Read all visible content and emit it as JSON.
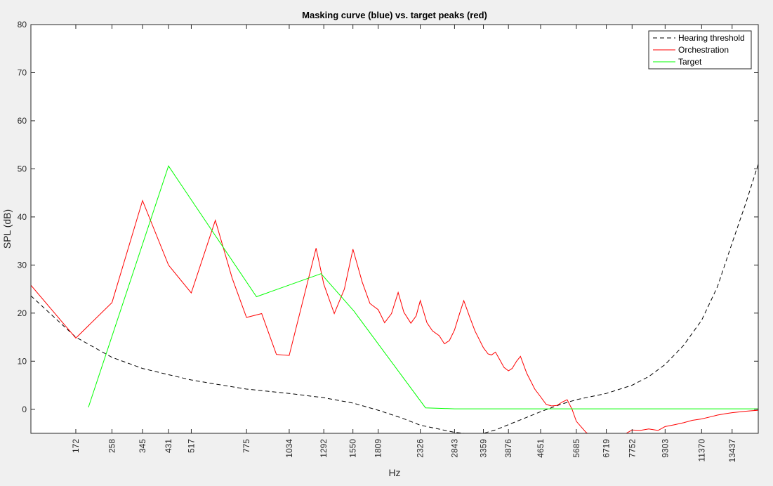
{
  "chart_data": {
    "type": "line",
    "title": "Masking curve (blue) vs. target peaks (red)",
    "xlabel": "Hz",
    "ylabel": "SPL (dB)",
    "ylim": [
      -5,
      80
    ],
    "yticks": [
      0,
      10,
      20,
      30,
      40,
      50,
      60,
      70,
      80
    ],
    "x_scale": "erb",
    "xlim": [
      86,
      15500
    ],
    "xticks": [
      172,
      258,
      345,
      431,
      517,
      775,
      1034,
      1292,
      1550,
      1809,
      2326,
      2843,
      3359,
      3876,
      4651,
      5685,
      6719,
      7752,
      9303,
      11370,
      13437
    ],
    "grid": false,
    "legend_position": "top-right",
    "series": [
      {
        "name": "Hearing threshold",
        "color": "#000000",
        "style": "dashed",
        "points": [
          [
            86,
            23.6
          ],
          [
            172,
            15.0
          ],
          [
            258,
            10.8
          ],
          [
            345,
            8.5
          ],
          [
            431,
            7.2
          ],
          [
            517,
            6.1
          ],
          [
            600,
            5.4
          ],
          [
            775,
            4.2
          ],
          [
            1034,
            3.3
          ],
          [
            1292,
            2.4
          ],
          [
            1550,
            1.3
          ],
          [
            1809,
            -0.2
          ],
          [
            2100,
            -1.9
          ],
          [
            2326,
            -3.3
          ],
          [
            2843,
            -4.8
          ],
          [
            3100,
            -5.1
          ],
          [
            3359,
            -5.0
          ],
          [
            3600,
            -4.3
          ],
          [
            3876,
            -3.2
          ],
          [
            4651,
            -0.5
          ],
          [
            5200,
            1.0
          ],
          [
            5685,
            2.0
          ],
          [
            6719,
            3.3
          ],
          [
            7752,
            5.0
          ],
          [
            8500,
            6.8
          ],
          [
            9303,
            9.3
          ],
          [
            10300,
            13.3
          ],
          [
            11370,
            18.5
          ],
          [
            12400,
            25.5
          ],
          [
            13437,
            34.6
          ],
          [
            14500,
            43.0
          ],
          [
            15500,
            51.0
          ]
        ]
      },
      {
        "name": "Orchestration",
        "color": "#ff0000",
        "style": "solid",
        "points": [
          [
            86,
            25.8
          ],
          [
            172,
            14.8
          ],
          [
            258,
            22.2
          ],
          [
            345,
            43.4
          ],
          [
            431,
            30.0
          ],
          [
            517,
            24.2
          ],
          [
            620,
            39.3
          ],
          [
            700,
            27.3
          ],
          [
            775,
            19.1
          ],
          [
            860,
            19.9
          ],
          [
            950,
            11.4
          ],
          [
            1034,
            11.2
          ],
          [
            1230,
            33.5
          ],
          [
            1292,
            26.0
          ],
          [
            1380,
            19.9
          ],
          [
            1470,
            25.0
          ],
          [
            1550,
            33.3
          ],
          [
            1640,
            26.5
          ],
          [
            1720,
            22.0
          ],
          [
            1809,
            20.7
          ],
          [
            1880,
            18.0
          ],
          [
            1960,
            19.9
          ],
          [
            2040,
            24.3
          ],
          [
            2110,
            20.2
          ],
          [
            2200,
            17.9
          ],
          [
            2270,
            19.4
          ],
          [
            2326,
            22.6
          ],
          [
            2420,
            18.0
          ],
          [
            2500,
            16.3
          ],
          [
            2600,
            15.3
          ],
          [
            2680,
            13.6
          ],
          [
            2760,
            14.3
          ],
          [
            2843,
            16.5
          ],
          [
            2930,
            20.0
          ],
          [
            3000,
            22.6
          ],
          [
            3100,
            19.3
          ],
          [
            3200,
            16.3
          ],
          [
            3359,
            12.8
          ],
          [
            3450,
            11.5
          ],
          [
            3520,
            11.3
          ],
          [
            3600,
            11.9
          ],
          [
            3700,
            10.1
          ],
          [
            3780,
            8.7
          ],
          [
            3876,
            8.0
          ],
          [
            3960,
            8.5
          ],
          [
            4060,
            10.0
          ],
          [
            4150,
            11.0
          ],
          [
            4300,
            7.5
          ],
          [
            4500,
            4.2
          ],
          [
            4651,
            2.6
          ],
          [
            4800,
            1.0
          ],
          [
            4950,
            0.7
          ],
          [
            5100,
            0.8
          ],
          [
            5250,
            1.5
          ],
          [
            5400,
            2.0
          ],
          [
            5550,
            0.0
          ],
          [
            5685,
            -2.5
          ],
          [
            6000,
            -4.8
          ],
          [
            6250,
            -5.8
          ],
          [
            6719,
            -5.5
          ],
          [
            7000,
            -5.3
          ],
          [
            7400,
            -5.3
          ],
          [
            7752,
            -4.3
          ],
          [
            8100,
            -4.4
          ],
          [
            8500,
            -4.1
          ],
          [
            8950,
            -4.4
          ],
          [
            9303,
            -3.6
          ],
          [
            9800,
            -3.2
          ],
          [
            10300,
            -2.8
          ],
          [
            10800,
            -2.3
          ],
          [
            11370,
            -2.0
          ],
          [
            11900,
            -1.6
          ],
          [
            12400,
            -1.2
          ],
          [
            13000,
            -0.9
          ],
          [
            13437,
            -0.7
          ],
          [
            14500,
            -0.4
          ],
          [
            15500,
            -0.2
          ]
        ]
      },
      {
        "name": "Target",
        "color": "#00ff00",
        "style": "solid",
        "points": [
          [
            200,
            0.4
          ],
          [
            431,
            50.6
          ],
          [
            830,
            23.4
          ],
          [
            1270,
            28.2
          ],
          [
            1560,
            20.4
          ],
          [
            2400,
            0.3
          ],
          [
            2843,
            0.1
          ],
          [
            15500,
            0.1
          ]
        ]
      }
    ]
  }
}
